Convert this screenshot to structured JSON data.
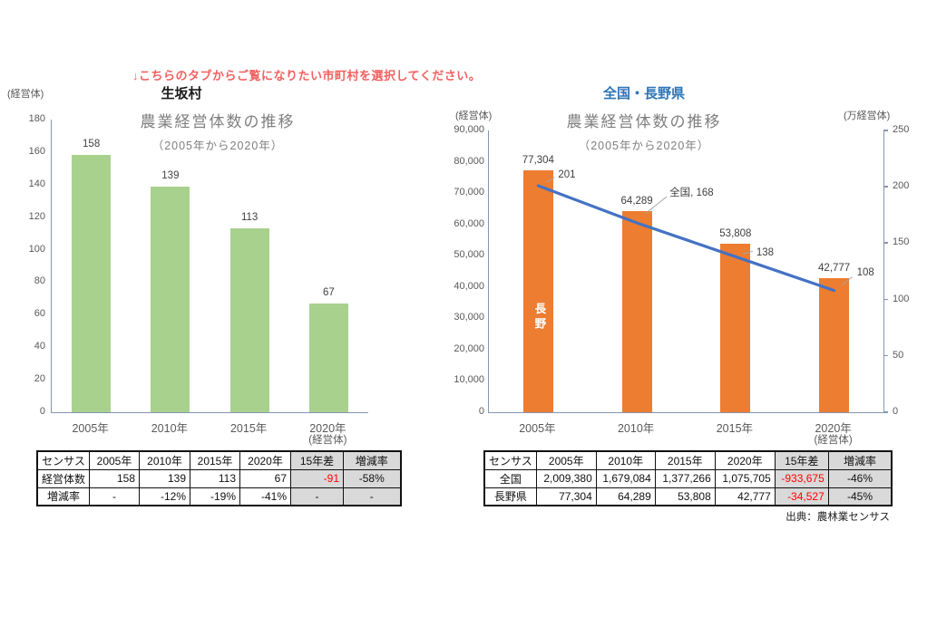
{
  "page": {
    "instruction": "↓こちらのタブからご覧になりたい市町村を選択してください。",
    "source_note": "出典：農林業センサス"
  },
  "colors": {
    "green_bar": "#A9D18E",
    "orange_bar": "#ED7D31",
    "blue_line": "#4472C4",
    "axis_line": "#8496B0",
    "title_gray": "#7F7F7F",
    "region_blue": "#2E75B6",
    "table_header_bg": "#D9D9D9",
    "table_red": "#FF0000"
  },
  "chart_data": [
    {
      "type": "bar",
      "region": "生坂村",
      "title": "農業経営体数の推移",
      "subtitle": "（2005年から2020年）",
      "unit_left": "(経営体)",
      "unit_bottom": "(経営体)",
      "categories": [
        "2005年",
        "2010年",
        "2015年",
        "2020年"
      ],
      "values": [
        158,
        139,
        113,
        67
      ],
      "value_labels": [
        "158",
        "139",
        "113",
        "67"
      ],
      "ylim": [
        0,
        180
      ],
      "ystep": 20,
      "bar_color": "#A9D18E",
      "legend": "none",
      "grid": "off"
    },
    {
      "type": "bar+line",
      "region": "全国・長野県",
      "title": "農業経営体数の推移",
      "subtitle": "（2005年から2020年）",
      "unit_left": "(経営体)",
      "unit_right": "(万経営体)",
      "unit_bottom": "(経営体)",
      "categories": [
        "2005年",
        "2010年",
        "2015年",
        "2020年"
      ],
      "series": [
        {
          "name": "長野",
          "type": "bar",
          "axis": "left",
          "values": [
            77304,
            64289,
            53808,
            42777
          ],
          "value_labels": [
            "77,304",
            "64,289",
            "53,808",
            "42,777"
          ],
          "color": "#ED7D31"
        },
        {
          "name": "全国",
          "type": "line",
          "axis": "right",
          "values": [
            201,
            168,
            138,
            108
          ],
          "point_labels": [
            "201",
            "全国, 168",
            "138",
            "108"
          ],
          "color": "#4472C4"
        }
      ],
      "left_ylim": [
        0,
        90000
      ],
      "left_ystep": 10000,
      "right_ylim": [
        0,
        250
      ],
      "right_ystep": 50,
      "grid": "off"
    }
  ],
  "left_table": {
    "headers": [
      "センサス",
      "2005年",
      "2010年",
      "2015年",
      "2020年",
      "15年差",
      "増減率"
    ],
    "rows": [
      {
        "label": "経営体数",
        "cells": [
          "158",
          "139",
          "113",
          "67"
        ],
        "diff": "-91",
        "rate": "-58%",
        "diff_red": true
      },
      {
        "label": "増減率",
        "cells": [
          "-",
          "-12%",
          "-19%",
          "-41%"
        ],
        "diff": "-",
        "rate": "-",
        "diff_red": false
      }
    ]
  },
  "right_table": {
    "headers": [
      "センサス",
      "2005年",
      "2010年",
      "2015年",
      "2020年",
      "15年差",
      "増減率"
    ],
    "rows": [
      {
        "label": "全国",
        "cells": [
          "2,009,380",
          "1,679,084",
          "1,377,266",
          "1,075,705"
        ],
        "diff": "-933,675",
        "rate": "-46%",
        "diff_red": true
      },
      {
        "label": "長野県",
        "cells": [
          "77,304",
          "64,289",
          "53,808",
          "42,777"
        ],
        "diff": "-34,527",
        "rate": "-45%",
        "diff_red": true
      }
    ]
  }
}
